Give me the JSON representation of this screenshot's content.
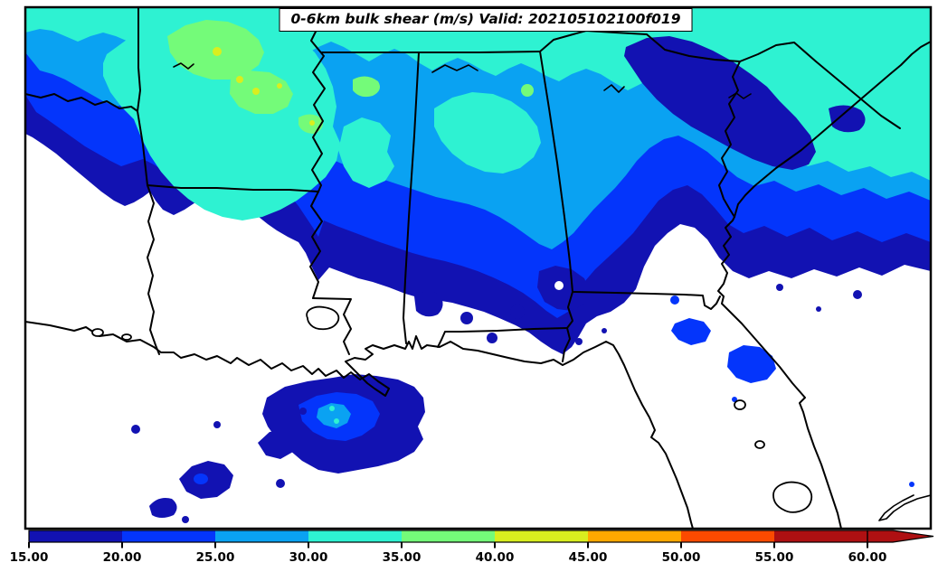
{
  "title": "0-6km bulk shear (m/s) Valid: 202105102100f019",
  "colorbar": {
    "unit": "m/s",
    "ticks": [
      "15.00",
      "20.00",
      "25.00",
      "30.00",
      "35.00",
      "40.00",
      "45.00",
      "50.00",
      "55.00",
      "60.00"
    ],
    "tick_values": [
      15,
      20,
      25,
      30,
      35,
      40,
      45,
      50,
      55,
      60
    ],
    "segments": [
      {
        "from": 15,
        "to": 20,
        "color": "#1212b2"
      },
      {
        "from": 20,
        "to": 25,
        "color": "#0435fb"
      },
      {
        "from": 25,
        "to": 30,
        "color": "#0aa2f2"
      },
      {
        "from": 30,
        "to": 35,
        "color": "#2ef2d2"
      },
      {
        "from": 35,
        "to": 40,
        "color": "#74fb79"
      },
      {
        "from": 40,
        "to": 45,
        "color": "#d9ee1f"
      },
      {
        "from": 45,
        "to": 50,
        "color": "#ffa800"
      },
      {
        "from": 50,
        "to": 55,
        "color": "#fc4a00"
      },
      {
        "from": 55,
        "to": 60,
        "color": "#ae1012"
      }
    ],
    "extend_max_color": "#ae1012"
  },
  "map": {
    "region": "Southeastern United States and Gulf of Mexico",
    "field": "0-6km bulk shear filled contours",
    "palette": {
      "below_15": "#ffffff",
      "navy": "#1212b2",
      "blue": "#0435fb",
      "sky": "#0aa2f2",
      "turq": "#2ef2d2",
      "green": "#74fb79",
      "yellow": "#d9ee1f"
    }
  }
}
